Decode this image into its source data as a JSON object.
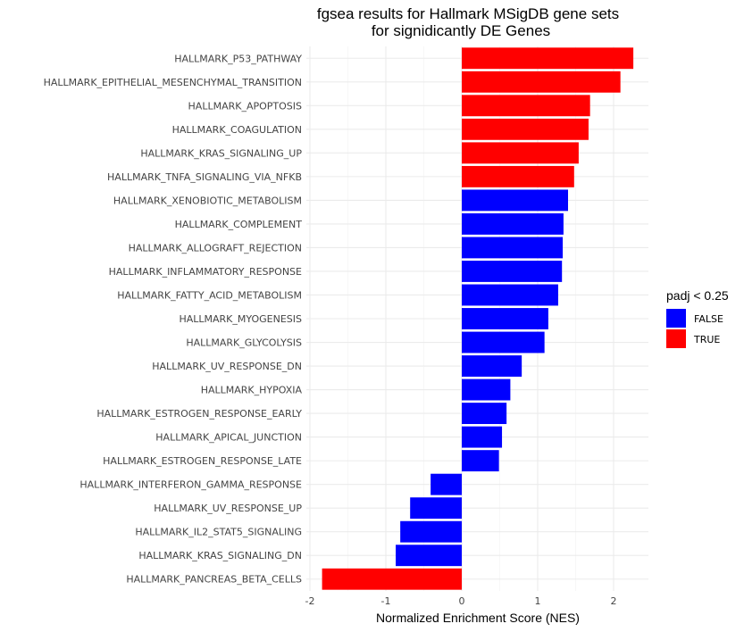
{
  "chart_data": {
    "type": "bar",
    "orientation": "horizontal",
    "title": "fgsea results for Hallmark MSigDB gene sets",
    "subtitle": "for signidicantly DE Genes",
    "xlabel": "Normalized Enrichment Score (NES)",
    "ylabel": "",
    "xlim": [
      -2.0,
      2.45
    ],
    "xticks": [
      -2,
      -1,
      0,
      1,
      2
    ],
    "grid": true,
    "legend": {
      "title": "padj < 0.25",
      "placement": "right",
      "entries": [
        {
          "label": "FALSE",
          "color": "#0000FF"
        },
        {
          "label": "TRUE",
          "color": "#FF0000"
        }
      ]
    },
    "categories": [
      "HALLMARK_P53_PATHWAY",
      "HALLMARK_EPITHELIAL_MESENCHYMAL_TRANSITION",
      "HALLMARK_APOPTOSIS",
      "HALLMARK_COAGULATION",
      "HALLMARK_KRAS_SIGNALING_UP",
      "HALLMARK_TNFA_SIGNALING_VIA_NFKB",
      "HALLMARK_XENOBIOTIC_METABOLISM",
      "HALLMARK_COMPLEMENT",
      "HALLMARK_ALLOGRAFT_REJECTION",
      "HALLMARK_INFLAMMATORY_RESPONSE",
      "HALLMARK_FATTY_ACID_METABOLISM",
      "HALLMARK_MYOGENESIS",
      "HALLMARK_GLYCOLYSIS",
      "HALLMARK_UV_RESPONSE_DN",
      "HALLMARK_HYPOXIA",
      "HALLMARK_ESTROGEN_RESPONSE_EARLY",
      "HALLMARK_APICAL_JUNCTION",
      "HALLMARK_ESTROGEN_RESPONSE_LATE",
      "HALLMARK_INTERFERON_GAMMA_RESPONSE",
      "HALLMARK_UV_RESPONSE_UP",
      "HALLMARK_IL2_STAT5_SIGNALING",
      "HALLMARK_KRAS_SIGNALING_DN",
      "HALLMARK_PANCREAS_BETA_CELLS"
    ],
    "values": [
      2.26,
      2.09,
      1.69,
      1.67,
      1.54,
      1.48,
      1.4,
      1.34,
      1.33,
      1.32,
      1.27,
      1.14,
      1.09,
      0.79,
      0.64,
      0.59,
      0.53,
      0.49,
      -0.41,
      -0.68,
      -0.81,
      -0.87,
      -1.84
    ],
    "padj_lt_025": [
      "TRUE",
      "TRUE",
      "TRUE",
      "TRUE",
      "TRUE",
      "TRUE",
      "FALSE",
      "FALSE",
      "FALSE",
      "FALSE",
      "FALSE",
      "FALSE",
      "FALSE",
      "FALSE",
      "FALSE",
      "FALSE",
      "FALSE",
      "FALSE",
      "FALSE",
      "FALSE",
      "FALSE",
      "FALSE",
      "TRUE"
    ]
  }
}
